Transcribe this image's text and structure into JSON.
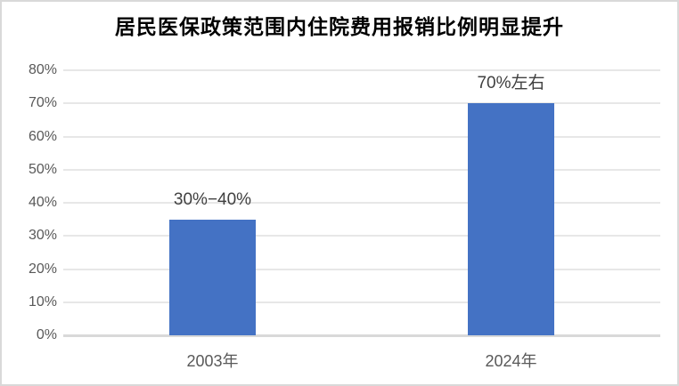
{
  "chart_data": {
    "type": "bar",
    "title": "居民医保政策范围内住院费用报销比例明显提升",
    "categories": [
      "2003年",
      "2024年"
    ],
    "values": [
      35,
      70
    ],
    "data_labels": [
      "30%−40%",
      "70%左右"
    ],
    "xlabel": "",
    "ylabel": "",
    "ylim": [
      0,
      80
    ],
    "yticks": [
      0,
      10,
      20,
      30,
      40,
      50,
      60,
      70,
      80
    ],
    "ytick_labels": [
      "0%",
      "10%",
      "20%",
      "30%",
      "40%",
      "50%",
      "60%",
      "70%",
      "80%"
    ],
    "grid": true,
    "legend": false,
    "colors": {
      "bar": "#4472C4",
      "gridline": "#E7E7E7",
      "axis_line": "#D9D9D9",
      "axis_text": "#595959",
      "data_label_text": "#404040",
      "title_text": "#000000"
    }
  }
}
